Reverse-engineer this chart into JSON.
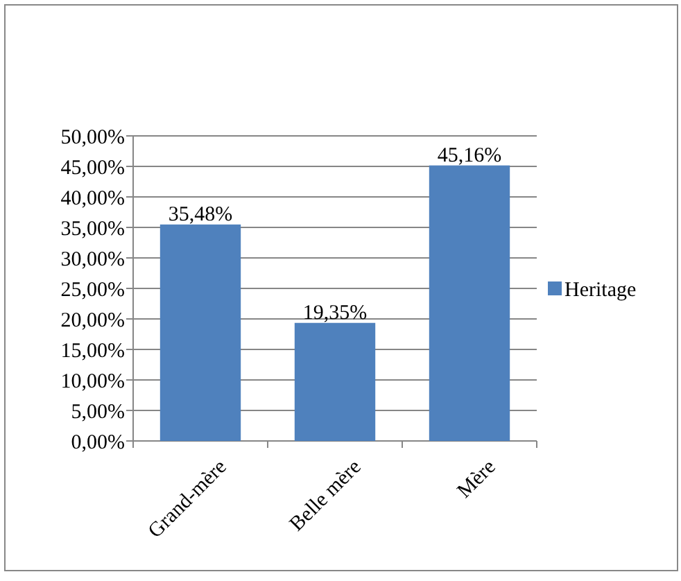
{
  "chart_data": {
    "type": "bar",
    "categories": [
      "Grand-mère",
      "Belle mère",
      "Mère"
    ],
    "series": [
      {
        "name": "Heritage",
        "color": "#4f81bd",
        "values": [
          35.48,
          19.35,
          45.16
        ],
        "value_labels": [
          "35,48%",
          "19,35%",
          "45,16%"
        ]
      }
    ],
    "ylim": [
      0,
      50
    ],
    "yticks": [
      {
        "value": 0,
        "label": "0,00%"
      },
      {
        "value": 5,
        "label": "5,00%"
      },
      {
        "value": 10,
        "label": "10,00%"
      },
      {
        "value": 15,
        "label": "15,00%"
      },
      {
        "value": 20,
        "label": "20,00%"
      },
      {
        "value": 25,
        "label": "25,00%"
      },
      {
        "value": 30,
        "label": "30,00%"
      },
      {
        "value": 35,
        "label": "35,00%"
      },
      {
        "value": 40,
        "label": "40,00%"
      },
      {
        "value": 45,
        "label": "45,00%"
      },
      {
        "value": 50,
        "label": "50,00%"
      }
    ],
    "grid": "y",
    "legend": "right"
  }
}
